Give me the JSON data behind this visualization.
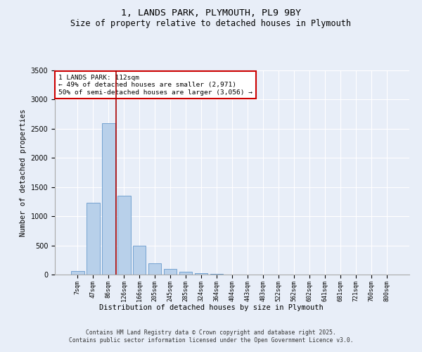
{
  "title1": "1, LANDS PARK, PLYMOUTH, PL9 9BY",
  "title2": "Size of property relative to detached houses in Plymouth",
  "xlabel": "Distribution of detached houses by size in Plymouth",
  "ylabel": "Number of detached properties",
  "categories": [
    "7sqm",
    "47sqm",
    "86sqm",
    "126sqm",
    "166sqm",
    "205sqm",
    "245sqm",
    "285sqm",
    "324sqm",
    "364sqm",
    "404sqm",
    "443sqm",
    "483sqm",
    "522sqm",
    "562sqm",
    "602sqm",
    "641sqm",
    "681sqm",
    "721sqm",
    "760sqm",
    "800sqm"
  ],
  "values": [
    55,
    1230,
    2600,
    1350,
    490,
    190,
    100,
    50,
    30,
    10,
    5,
    2,
    1,
    0,
    0,
    0,
    0,
    0,
    0,
    0,
    0
  ],
  "bar_color": "#b8d0ea",
  "bar_edge_color": "#6699cc",
  "vline_color": "#aa0000",
  "annotation_text": "1 LANDS PARK: 112sqm\n← 49% of detached houses are smaller (2,971)\n50% of semi-detached houses are larger (3,056) →",
  "annotation_box_color": "#ffffff",
  "annotation_box_edge": "#cc0000",
  "ylim": [
    0,
    3500
  ],
  "yticks": [
    0,
    500,
    1000,
    1500,
    2000,
    2500,
    3000,
    3500
  ],
  "background_color": "#e8eef8",
  "plot_bg_color": "#e8eef8",
  "footer": "Contains HM Land Registry data © Crown copyright and database right 2025.\nContains public sector information licensed under the Open Government Licence v3.0.",
  "title_fontsize": 9.5,
  "subtitle_fontsize": 8.5,
  "vline_x": 2.5
}
